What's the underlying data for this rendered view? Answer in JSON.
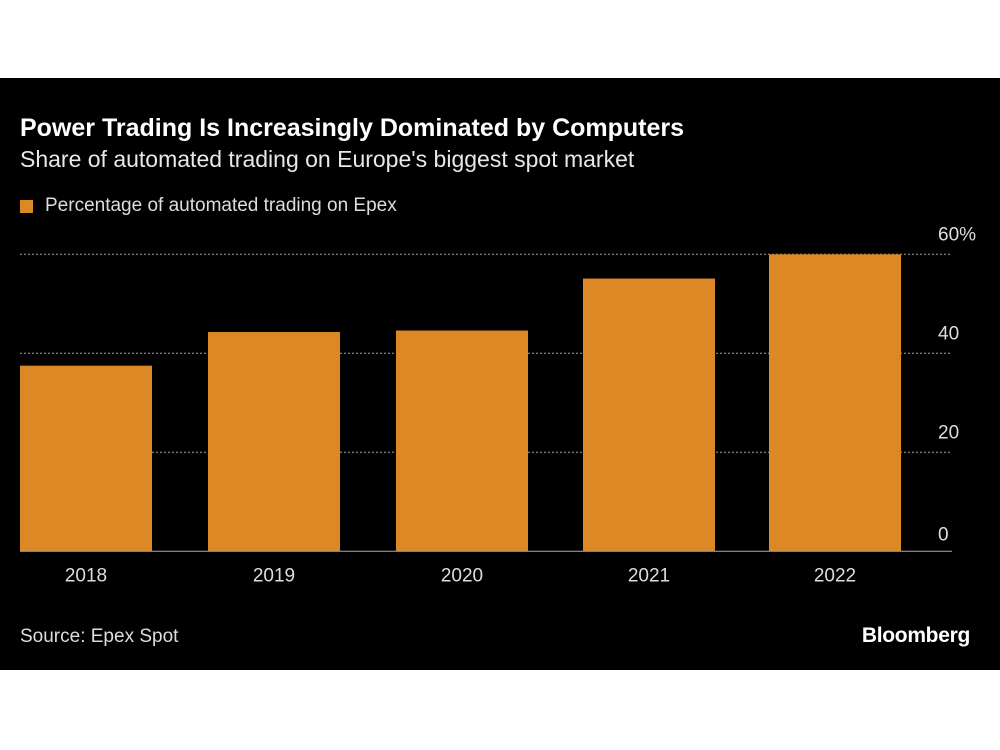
{
  "chart_data": {
    "type": "bar",
    "title": "Power Trading Is Increasingly Dominated by Computers",
    "subtitle": "Share of automated trading on Europe's biggest spot market",
    "categories": [
      "2018",
      "2019",
      "2020",
      "2021",
      "2022"
    ],
    "series": [
      {
        "name": "Percentage of automated trading on Epex",
        "values": [
          37.5,
          44.3,
          44.6,
          55.1,
          60.0
        ],
        "color": "#db8825"
      }
    ],
    "yticks": [
      0,
      20,
      40,
      60
    ],
    "ytick_labels": [
      "0",
      "20",
      "40",
      "60%"
    ],
    "ylim": [
      0,
      60
    ],
    "y_axis_side": "right",
    "grid": "horizontal dotted",
    "legend": "top-left",
    "source": "Source: Epex Spot",
    "logo": "Bloomberg",
    "background": "#000000"
  }
}
